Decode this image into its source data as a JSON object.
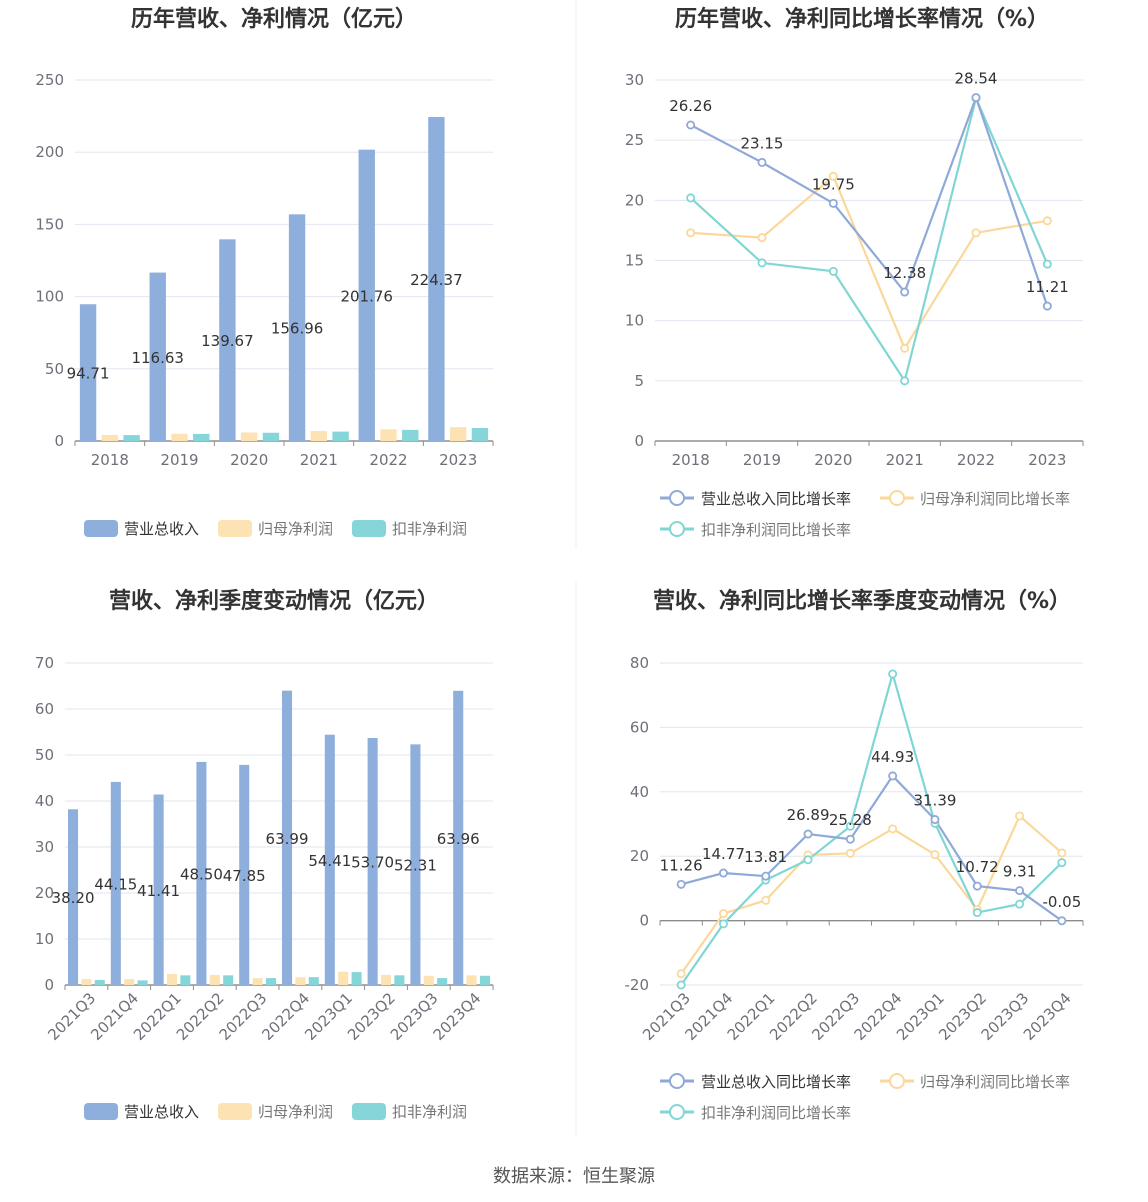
{
  "source": "数据来源：恒生聚源",
  "colors": {
    "revenue": "#8eaedc",
    "net": "#fde3b4",
    "deducted": "#86d5d8",
    "revenue_line": "#8fa9d8",
    "net_line": "#fbd89a",
    "deducted_line": "#80d6d4"
  },
  "chart_data": [
    {
      "id": "annual-amount",
      "type": "bar",
      "title": "历年营收、净利情况（亿元）",
      "categories": [
        "2018",
        "2019",
        "2020",
        "2021",
        "2022",
        "2023"
      ],
      "ylim": [
        0,
        250
      ],
      "yticks": [
        0,
        50,
        100,
        150,
        200,
        250
      ],
      "series": [
        {
          "name": "营业总收入",
          "values": [
            94.71,
            116.63,
            139.67,
            156.96,
            201.76,
            224.37
          ],
          "labels": [
            "94.71",
            "116.63",
            "139.67",
            "156.96",
            "201.76",
            "224.37"
          ]
        },
        {
          "name": "归母净利润",
          "values": [
            4.2,
            5.0,
            5.9,
            6.9,
            8.1,
            9.6
          ]
        },
        {
          "name": "扣非净利润",
          "values": [
            4.1,
            4.9,
            5.7,
            6.5,
            7.7,
            9.0
          ]
        }
      ]
    },
    {
      "id": "annual-growth",
      "type": "line",
      "title": "历年营收、净利同比增长率情况（%）",
      "categories": [
        "2018",
        "2019",
        "2020",
        "2021",
        "2022",
        "2023"
      ],
      "ylim": [
        0,
        30
      ],
      "yticks": [
        0,
        5,
        10,
        15,
        20,
        25,
        30
      ],
      "series": [
        {
          "name": "营业总收入同比增长率",
          "values": [
            26.26,
            23.15,
            19.75,
            12.38,
            28.54,
            11.21
          ],
          "labels": [
            "26.26",
            "23.15",
            "19.75",
            "12.38",
            "28.54",
            "11.21"
          ]
        },
        {
          "name": "归母净利润同比增长率",
          "values": [
            17.3,
            16.9,
            22.0,
            7.7,
            17.3,
            18.3
          ]
        },
        {
          "name": "扣非净利润同比增长率",
          "values": [
            20.2,
            14.8,
            14.1,
            5.0,
            28.5,
            14.7
          ]
        }
      ]
    },
    {
      "id": "quarterly-amount",
      "type": "bar",
      "title": "营收、净利季度变动情况（亿元）",
      "categories": [
        "2021Q3",
        "2021Q4",
        "2022Q1",
        "2022Q2",
        "2022Q3",
        "2022Q4",
        "2023Q1",
        "2023Q2",
        "2023Q3",
        "2023Q4"
      ],
      "ylim": [
        0,
        70
      ],
      "yticks": [
        0,
        10,
        20,
        30,
        40,
        50,
        60,
        70
      ],
      "series": [
        {
          "name": "营业总收入",
          "values": [
            38.2,
            44.15,
            41.41,
            48.5,
            47.85,
            63.99,
            54.41,
            53.7,
            52.31,
            63.96
          ],
          "labels": [
            "38.20",
            "44.15",
            "41.41",
            "48.50",
            "47.85",
            "63.99",
            "54.41",
            "53.70",
            "52.31",
            "63.96"
          ]
        },
        {
          "name": "归母净利润",
          "values": [
            1.3,
            1.3,
            2.4,
            2.2,
            1.5,
            1.7,
            2.9,
            2.2,
            2.0,
            2.1
          ]
        },
        {
          "name": "扣非净利润",
          "values": [
            1.1,
            1.0,
            2.1,
            2.1,
            1.5,
            1.7,
            2.8,
            2.1,
            1.5,
            2.0
          ]
        }
      ]
    },
    {
      "id": "quarterly-growth",
      "type": "line",
      "title": "营收、净利同比增长率季度变动情况（%）",
      "categories": [
        "2021Q3",
        "2021Q4",
        "2022Q1",
        "2022Q2",
        "2022Q3",
        "2022Q4",
        "2023Q1",
        "2023Q2",
        "2023Q3",
        "2023Q4"
      ],
      "ylim": [
        -20,
        80
      ],
      "yticks": [
        -20,
        0,
        20,
        40,
        60,
        80
      ],
      "series": [
        {
          "name": "营业总收入同比增长率",
          "values": [
            11.26,
            14.77,
            13.81,
            26.89,
            25.28,
            44.93,
            31.39,
            10.72,
            9.31,
            -0.05
          ],
          "labels": [
            "11.26",
            "14.77",
            "13.81",
            "26.89",
            "25.28",
            "44.93",
            "31.39",
            "10.72",
            "9.31",
            "-0.05"
          ]
        },
        {
          "name": "归母净利润同比增长率",
          "values": [
            -16.5,
            2.2,
            6.3,
            20.4,
            20.9,
            28.5,
            20.5,
            3.5,
            32.5,
            21.0
          ]
        },
        {
          "name": "扣非净利润同比增长率",
          "values": [
            -20.0,
            -1.0,
            12.6,
            18.9,
            29.3,
            76.6,
            30.2,
            2.5,
            5.1,
            18.0
          ]
        }
      ]
    }
  ]
}
